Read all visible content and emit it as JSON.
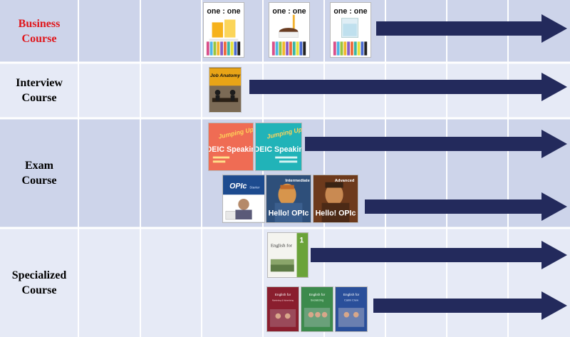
{
  "accent_colors": {
    "label_red": "#e0161b",
    "arrow_navy": "#232a5c",
    "row_band_light": "#e6eaf6",
    "row_band_dark": "#cdd4ea",
    "divider": "#ffffff"
  },
  "rows": [
    {
      "label_lines": [
        "Business",
        "Course"
      ],
      "label_color": "#e0161b",
      "books": [
        {
          "title": "one : one",
          "theme": "orange-juice"
        },
        {
          "title": "one : one",
          "theme": "coffee-cup"
        },
        {
          "title": "one : one",
          "theme": "water-glass"
        }
      ]
    },
    {
      "label_lines": [
        "Interview",
        "Course"
      ],
      "label_color": "#000000",
      "books": [
        {
          "title": "Job Anatomy",
          "theme": "interview"
        }
      ]
    },
    {
      "label_lines": [
        "Exam",
        "Course"
      ],
      "label_color": "#000000",
      "books": [
        {
          "title": "TOEIC Speaking",
          "subtitle": "Jumping Up",
          "theme": "coral"
        },
        {
          "title": "TOEIC Speaking",
          "subtitle": "Jumping Up",
          "theme": "teal"
        },
        {
          "title": "OPIc",
          "subtitle": "Starter",
          "theme": "opic-blue"
        },
        {
          "title": "Hello! OPIc",
          "subtitle": "Intermediate",
          "theme": "van-gogh-blue"
        },
        {
          "title": "Hello! OPIc",
          "subtitle": "Advanced",
          "theme": "van-gogh-red"
        }
      ]
    },
    {
      "label_lines": [
        "Specialized",
        "Course"
      ],
      "label_color": "#000000",
      "books": [
        {
          "title": "English for",
          "subtitle": "1",
          "theme": "green-specialized"
        },
        {
          "title": "English for",
          "subtitle": "Marketing & Advertising",
          "theme": "maroon"
        },
        {
          "title": "English for",
          "subtitle": "Socializing",
          "theme": "green"
        },
        {
          "title": "English for",
          "subtitle": "Cabin Crew",
          "theme": "blue"
        }
      ]
    }
  ]
}
